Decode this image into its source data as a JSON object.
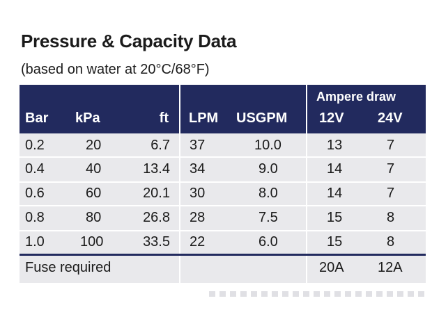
{
  "title": "Pressure & Capacity Data",
  "subtitle": "(based on water at 20°C/68°F)",
  "headers": {
    "bar": "Bar",
    "kpa": "kPa",
    "ft": "ft",
    "lpm": "LPM",
    "usgpm": "USGPM",
    "ampere_draw": "Ampere draw",
    "v12": "12V",
    "v24": "24V"
  },
  "rows": [
    {
      "bar": "0.2",
      "kpa": "20",
      "ft": "6.7",
      "lpm": "37",
      "usgpm": "10.0",
      "a12": "13",
      "a24": "7"
    },
    {
      "bar": "0.4",
      "kpa": "40",
      "ft": "13.4",
      "lpm": "34",
      "usgpm": "9.0",
      "a12": "14",
      "a24": "7"
    },
    {
      "bar": "0.6",
      "kpa": "60",
      "ft": "20.1",
      "lpm": "30",
      "usgpm": "8.0",
      "a12": "14",
      "a24": "7"
    },
    {
      "bar": "0.8",
      "kpa": "80",
      "ft": "26.8",
      "lpm": "28",
      "usgpm": "7.5",
      "a12": "15",
      "a24": "8"
    },
    {
      "bar": "1.0",
      "kpa": "100",
      "ft": "33.5",
      "lpm": "22",
      "usgpm": "6.0",
      "a12": "15",
      "a24": "8"
    }
  ],
  "fuse": {
    "label": "Fuse required",
    "v12": "20A",
    "v24": "12A"
  },
  "colors": {
    "header_bg": "#222a5e",
    "row_bg": "#e9e9ec"
  }
}
